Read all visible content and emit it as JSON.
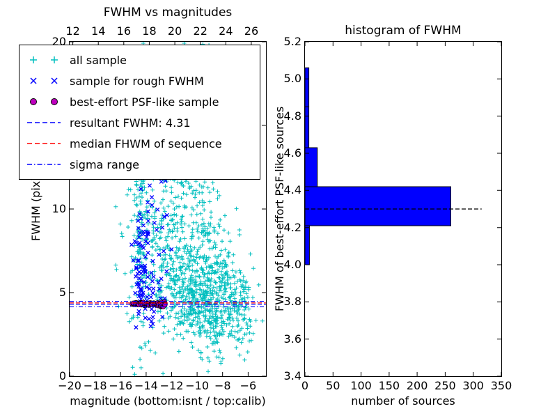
{
  "chart_data": [
    {
      "type": "scatter",
      "title": "FWHM vs magnitudes",
      "xlabel": "magnitude (bottom:isnt / top:calib)",
      "ylabel": "FWHM (pix)",
      "xlim": [
        -20,
        -4.6
      ],
      "ylim": [
        0,
        20
      ],
      "top_xlim": [
        11.75,
        27.15
      ],
      "xticks": [
        -20,
        -18,
        -16,
        -14,
        -12,
        -10,
        -8,
        -6
      ],
      "top_xticks": [
        12,
        14,
        16,
        18,
        20,
        22,
        24,
        26
      ],
      "yticks": [
        0,
        5,
        10,
        15,
        20
      ],
      "legend": {
        "items": [
          {
            "label": "all sample"
          },
          {
            "label": "sample for rough FWHM"
          },
          {
            "label": "best-effort PSF-like sample"
          },
          {
            "label": "resultant FWHM: 4.31"
          },
          {
            "label": "median FHWM of sequence"
          },
          {
            "label": "sigma range"
          }
        ]
      },
      "series": [
        {
          "name": "all sample",
          "marker": "plus",
          "color": "#00bfbf",
          "clusters": [
            [
              -14.4,
              9.0,
              0.35,
              4.5,
              150
            ],
            [
              -10.3,
              6.3,
              1.4,
              2.3,
              430
            ],
            [
              -9.2,
              4.4,
              1.4,
              1.2,
              260
            ],
            [
              -10.9,
              12.5,
              1.1,
              3.0,
              170
            ],
            [
              -7.6,
              4.3,
              1.0,
              1.6,
              130
            ],
            [
              -12.9,
              7.5,
              0.8,
              2.5,
              90
            ]
          ],
          "uniform": [
            [
              -16.4,
              -12.6,
              3.0,
              19.5,
              70
            ],
            [
              -12.5,
              -8.6,
              13.5,
              20.0,
              60
            ],
            [
              -7.3,
              -5.6,
              2.0,
              6.0,
              35
            ]
          ]
        },
        {
          "name": "sample for rough FWHM",
          "marker": "x",
          "color": "#0000ff",
          "clusters": [
            [
              -14.35,
              6.3,
              0.3,
              1.6,
              55
            ],
            [
              -13.6,
              9.0,
              0.6,
              2.2,
              28
            ],
            [
              -13.1,
              5.0,
              0.6,
              0.9,
              16
            ],
            [
              -13.4,
              3.5,
              0.5,
              0.3,
              6
            ]
          ],
          "uniform": [
            [
              -14.6,
              -12.4,
              4.0,
              12.5,
              14
            ]
          ]
        },
        {
          "name": "best-effort PSF-like sample",
          "marker": "circle",
          "fill": "#bf00bf",
          "edge": "#000000",
          "band": {
            "x0": -15.05,
            "x1": -12.45,
            "y": 4.31,
            "sy": 0.055,
            "n": 70
          }
        }
      ],
      "lines": [
        {
          "name": "resultant FWHM",
          "y": 4.31,
          "style": "dashed",
          "color": "#0000ff"
        },
        {
          "name": "median FHWM of sequence",
          "y": 4.38,
          "style": "dashed",
          "color": "#ff0000"
        },
        {
          "name": "sigma range low",
          "y": 4.16,
          "style": "dashdot",
          "color": "#0000ff"
        },
        {
          "name": "sigma range high",
          "y": 4.47,
          "style": "dashdot",
          "color": "#0000ff"
        }
      ],
      "seed": 7
    },
    {
      "type": "bar",
      "orientation": "horizontal",
      "title": "histogram of FWHM",
      "xlabel": "number of sources",
      "ylabel": "FWHM of best-effort PSF-like sources",
      "xlim": [
        0,
        350
      ],
      "ylim": [
        3.4,
        5.2
      ],
      "xticks": [
        0,
        50,
        100,
        150,
        200,
        250,
        300,
        350
      ],
      "yticks": [
        3.4,
        3.6,
        3.8,
        4.0,
        4.2,
        4.4,
        4.6,
        4.8,
        5.0,
        5.2
      ],
      "bar_color": "#0000ff",
      "bar_edge": "#000000",
      "bars": [
        {
          "from": 4.0,
          "to": 4.21,
          "count": 8
        },
        {
          "from": 4.21,
          "to": 4.42,
          "count": 260
        },
        {
          "from": 4.42,
          "to": 4.63,
          "count": 22
        },
        {
          "from": 4.63,
          "to": 4.85,
          "count": 7
        },
        {
          "from": 4.85,
          "to": 5.06,
          "count": 7
        }
      ],
      "median_line": {
        "y": 4.3,
        "x_start": 0,
        "x_end": 315,
        "style": "dashed",
        "color": "#000000"
      }
    }
  ]
}
